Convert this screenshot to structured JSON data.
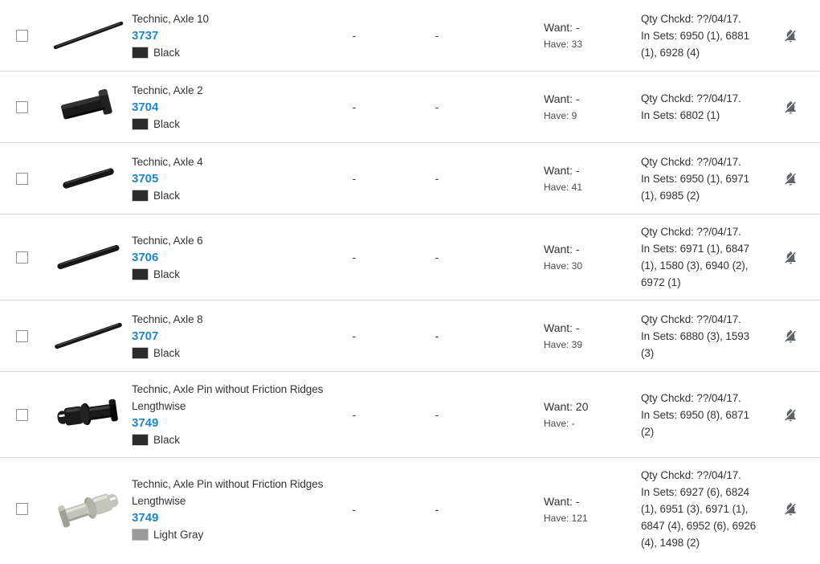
{
  "page": {
    "background": "#ffffff"
  },
  "colors": {
    "link_blue": "#1e88c7",
    "text_primary": "#333333",
    "text_secondary": "#4a4a4a",
    "row_border": "#d9d9d9",
    "icon_gray": "#5f6368",
    "checkbox_border": "#8f8f8f",
    "swatch_black": "#2b2b2b",
    "swatch_light_gray": "#9a9a9a"
  },
  "icons": {
    "row_action": "notifications-off"
  },
  "table": {
    "rows": [
      {
        "name": "Technic, Axle 10",
        "part_no": "3737",
        "color_name": "Black",
        "swatch_hex": "#2b2b2b",
        "col1": "-",
        "col2": "-",
        "want_text": "Want: -",
        "have_text": "Have: 33",
        "qty_chckd": "Qty Chckd: ??/04/17.",
        "in_sets": "In Sets: 6950 (1), 6881 (1), 6928 (4)",
        "thumb": {
          "kind": "rod",
          "len": 100,
          "thick": 5,
          "angle": -20,
          "fill": "#161616"
        }
      },
      {
        "name": "Technic, Axle 2",
        "part_no": "3704",
        "color_name": "Black",
        "swatch_hex": "#2b2b2b",
        "col1": "-",
        "col2": "-",
        "want_text": "Want: -",
        "have_text": "Have: 9",
        "qty_chckd": "Qty Chckd: ??/04/17.",
        "in_sets": "In Sets: 6802 (1)",
        "thumb": {
          "kind": "axle2",
          "fill": "#191919"
        }
      },
      {
        "name": "Technic, Axle 4",
        "part_no": "3705",
        "color_name": "Black",
        "swatch_hex": "#2b2b2b",
        "col1": "-",
        "col2": "-",
        "want_text": "Want: -",
        "have_text": "Have: 41",
        "qty_chckd": "Qty Chckd: ??/04/17.",
        "in_sets": "In Sets: 6950 (1), 6971 (1), 6985 (2)",
        "thumb": {
          "kind": "rod",
          "len": 72,
          "thick": 9,
          "angle": -17,
          "fill": "#161616"
        }
      },
      {
        "name": "Technic, Axle 6",
        "part_no": "3706",
        "color_name": "Black",
        "swatch_hex": "#2b2b2b",
        "col1": "-",
        "col2": "-",
        "want_text": "Want: -",
        "have_text": "Have: 30",
        "qty_chckd": "Qty Chckd: ??/04/17.",
        "in_sets": "In Sets: 6971 (1), 6847 (1), 1580 (3), 6940 (2), 6972 (1)",
        "thumb": {
          "kind": "rod",
          "len": 88,
          "thick": 8,
          "angle": -18,
          "fill": "#161616"
        }
      },
      {
        "name": "Technic, Axle 8",
        "part_no": "3707",
        "color_name": "Black",
        "swatch_hex": "#2b2b2b",
        "col1": "-",
        "col2": "-",
        "want_text": "Want: -",
        "have_text": "Have: 39",
        "qty_chckd": "Qty Chckd: ??/04/17.",
        "in_sets": "In Sets: 6880 (3), 1593 (3)",
        "thumb": {
          "kind": "rod",
          "len": 96,
          "thick": 6,
          "angle": -19,
          "fill": "#161616"
        }
      },
      {
        "name": "Technic, Axle Pin without Friction Ridges Lengthwise",
        "part_no": "3749",
        "color_name": "Black",
        "swatch_hex": "#2b2b2b",
        "col1": "-",
        "col2": "-",
        "want_text": "Want: 20",
        "have_text": "Have: -",
        "qty_chckd": "Qty Chckd: ??/04/17.",
        "in_sets": "In Sets: 6950 (8), 6871 (2)",
        "thumb": {
          "kind": "pin",
          "palette": "black",
          "angle": -8,
          "mirror": false
        }
      },
      {
        "name": "Technic, Axle Pin without Friction Ridges Lengthwise",
        "part_no": "3749",
        "color_name": "Light Gray",
        "swatch_hex": "#9a9a9a",
        "col1": "-",
        "col2": "-",
        "want_text": "Want: -",
        "have_text": "Have: 121",
        "qty_chckd": "Qty Chckd: ??/04/17.",
        "in_sets": "In Sets: 6927 (6), 6824 (1), 6951 (3), 6971 (1), 6847 (4), 6952 (6), 6926 (4), 1498 (2)",
        "thumb": {
          "kind": "pin",
          "palette": "gray",
          "angle": -18,
          "mirror": true
        }
      }
    ]
  }
}
